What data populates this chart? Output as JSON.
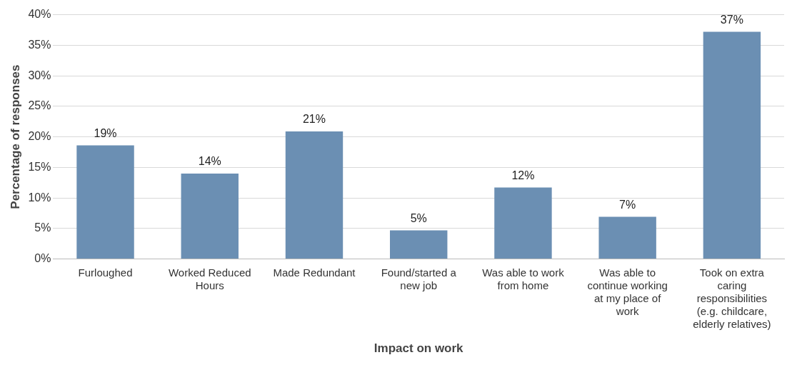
{
  "chart_data": {
    "type": "bar",
    "xlabel": "Impact on work",
    "ylabel": "Percentage of responses",
    "categories": [
      "Furloughed",
      "Worked Reduced Hours",
      "Made Redundant",
      "Found/started a new job",
      "Was able to work from home",
      "Was able to continue working at my place of work",
      "Took on extra caring responsibilities (e.g. childcare, elderly relatives)"
    ],
    "values": [
      18.6,
      14,
      20.9,
      4.7,
      11.7,
      6.9,
      37.2
    ],
    "value_labels": [
      "19%",
      "14%",
      "21%",
      "5%",
      "12%",
      "7%",
      "37%"
    ],
    "color": "#6b8fb3",
    "ylim": [
      0,
      40
    ],
    "yticks": [
      {
        "value": 0,
        "label": "0%"
      },
      {
        "value": 5,
        "label": "5%"
      },
      {
        "value": 10,
        "label": "10%"
      },
      {
        "value": 15,
        "label": "15%"
      },
      {
        "value": 20,
        "label": "20%"
      },
      {
        "value": 25,
        "label": "25%"
      },
      {
        "value": 30,
        "label": "30%"
      },
      {
        "value": 35,
        "label": "35%"
      },
      {
        "value": 40,
        "label": "40%"
      }
    ],
    "grid": "y",
    "legend": false
  }
}
